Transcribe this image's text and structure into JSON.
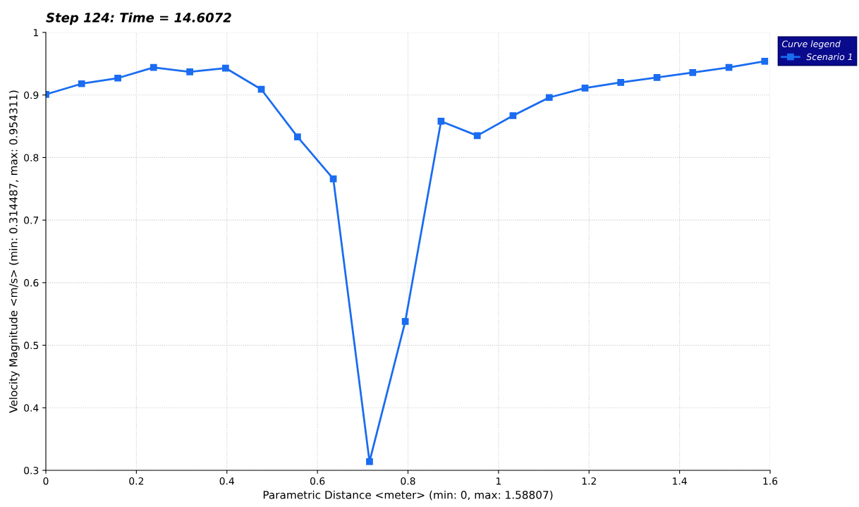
{
  "chart_data": {
    "type": "line",
    "title": "Step 124: Time = 14.6072",
    "xlabel": "Parametric Distance <meter> (min: 0, max: 1.58807)",
    "ylabel": "Velocity Magnitude <m/s> (min: 0.314487, max: 0.954311)",
    "legend_title": "Curve legend",
    "x": [
      0,
      0.079,
      0.159,
      0.238,
      0.318,
      0.397,
      0.476,
      0.556,
      0.635,
      0.715,
      0.794,
      0.873,
      0.953,
      1.032,
      1.112,
      1.191,
      1.27,
      1.35,
      1.429,
      1.509,
      1.588
    ],
    "series": [
      {
        "name": "Scenario 1",
        "color": "#1a6cf0",
        "values": [
          0.901,
          0.918,
          0.927,
          0.944,
          0.937,
          0.943,
          0.909,
          0.833,
          0.766,
          0.314,
          0.538,
          0.858,
          0.835,
          0.867,
          0.896,
          0.911,
          0.92,
          0.928,
          0.936,
          0.944,
          0.954
        ]
      }
    ],
    "xlim": [
      0,
      1.6
    ],
    "xticks": [
      0,
      0.2,
      0.4,
      0.6,
      0.8,
      1,
      1.2,
      1.4,
      1.6
    ],
    "ylim": [
      0.3,
      1
    ],
    "yticks": [
      0.3,
      0.4,
      0.5,
      0.6,
      0.7,
      0.8,
      0.9,
      1
    ],
    "grid": true,
    "legend": "top right",
    "marker": "square",
    "line_style": "solid"
  }
}
